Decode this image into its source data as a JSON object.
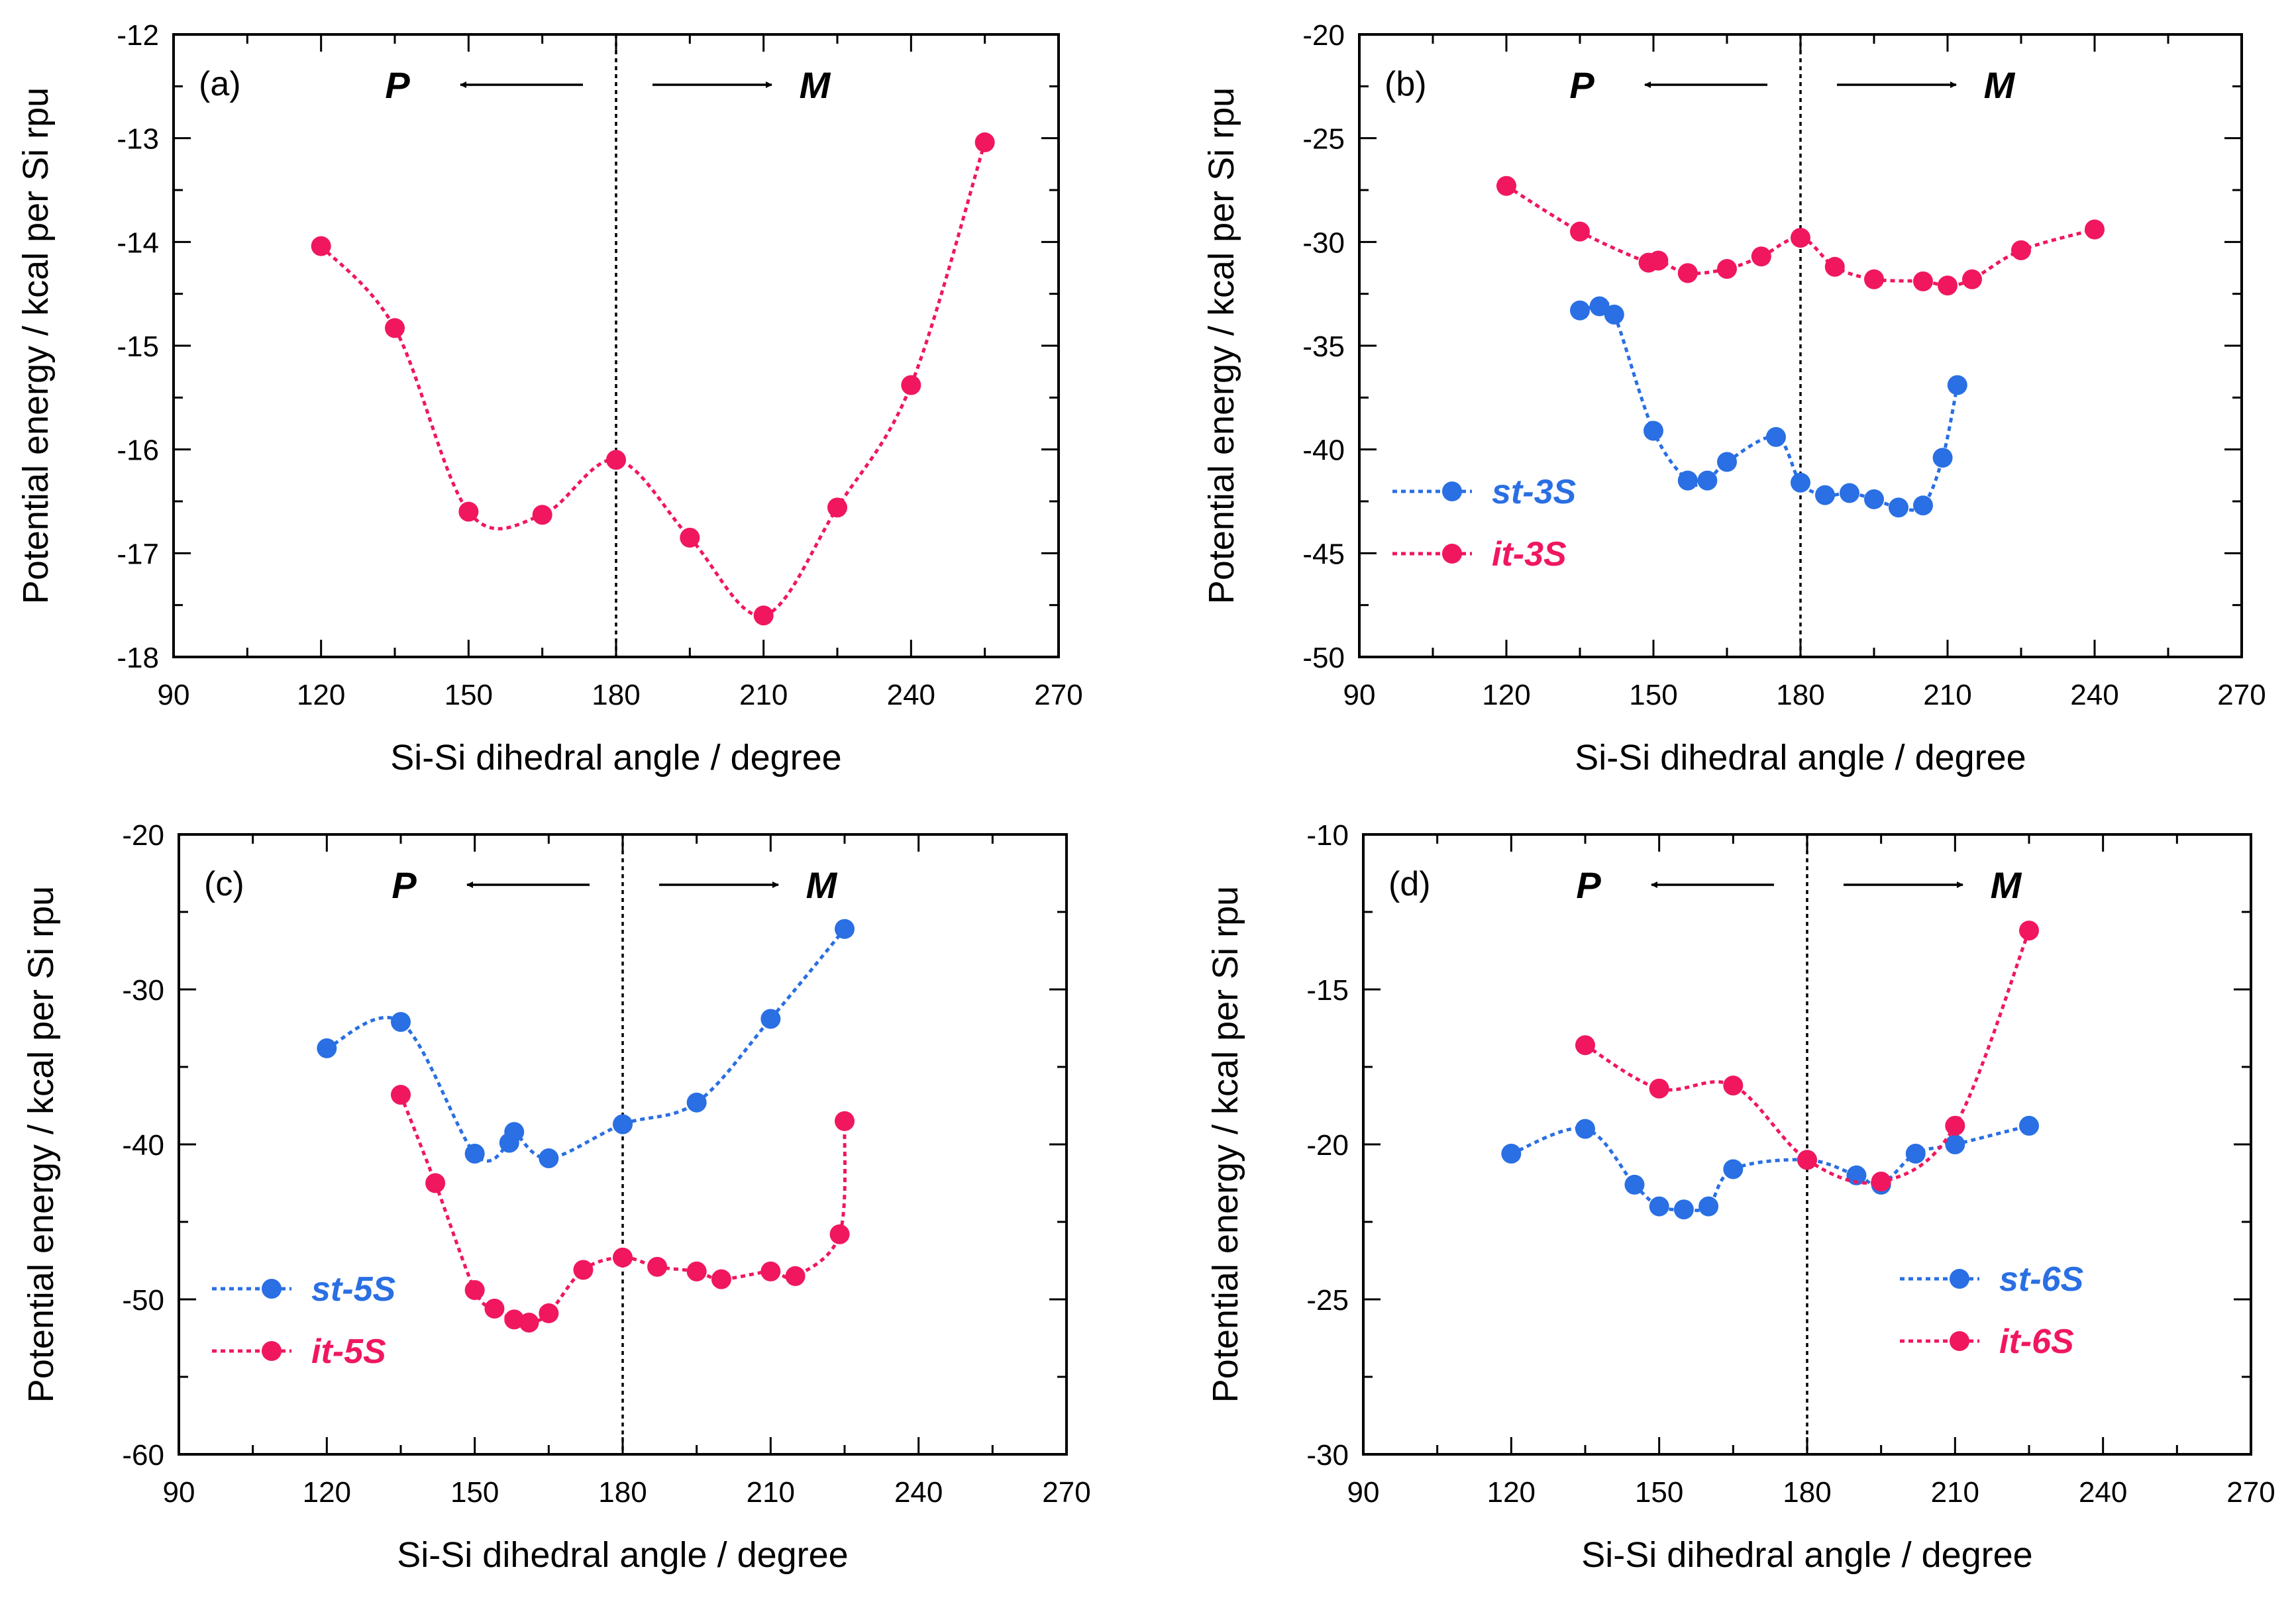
{
  "colors": {
    "pink": "#f0175f",
    "blue": "#2a6fe3",
    "axis": "#000000"
  },
  "chart_data": [
    {
      "type": "line",
      "panel_label": "(a)",
      "xlabel": "Si-Si dihedral angle / degree",
      "ylabel": "Potential energy / kcal per Si rpu",
      "xlim": [
        90,
        270
      ],
      "xticks": [
        90,
        120,
        150,
        180,
        210,
        240,
        270
      ],
      "ylim": [
        -18,
        -12
      ],
      "yticks": [
        -18,
        -17,
        -16,
        -15,
        -14,
        -13,
        -12
      ],
      "divider_x": 180,
      "left_label": "P",
      "right_label": "M",
      "legend": {
        "position": "none",
        "entries": []
      },
      "series": [
        {
          "name": "",
          "color": "#f0175f",
          "x": [
            120,
            135,
            150,
            165,
            180,
            195,
            210,
            225,
            240,
            255
          ],
          "y": [
            -14.04,
            -14.83,
            -16.6,
            -16.63,
            -16.1,
            -16.85,
            -17.6,
            -16.56,
            -15.38,
            -13.04
          ]
        }
      ]
    },
    {
      "type": "line",
      "panel_label": "(b)",
      "xlabel": "Si-Si dihedral angle / degree",
      "ylabel": "Potential energy / kcal per Si rpu",
      "xlim": [
        90,
        270
      ],
      "xticks": [
        90,
        120,
        150,
        180,
        210,
        240,
        270
      ],
      "ylim": [
        -50,
        -20
      ],
      "yticks": [
        -50,
        -45,
        -40,
        -35,
        -30,
        -25,
        -20
      ],
      "divider_x": 180,
      "left_label": "P",
      "right_label": "M",
      "legend": {
        "position": "bottom-left",
        "entries": [
          {
            "prefix": "st",
            "suffix": "-3S",
            "color": "#2a6fe3"
          },
          {
            "prefix": "it",
            "suffix": "-3S",
            "color": "#f0175f"
          }
        ]
      },
      "series": [
        {
          "name": "st-3S",
          "color": "#2a6fe3",
          "x": [
            135,
            139,
            142,
            150,
            157,
            161,
            165,
            175,
            180,
            185,
            190,
            195,
            200,
            205,
            209,
            212
          ],
          "y": [
            -33.3,
            -33.1,
            -33.5,
            -39.1,
            -41.5,
            -41.5,
            -40.6,
            -39.4,
            -41.6,
            -42.2,
            -42.1,
            -42.4,
            -42.8,
            -42.7,
            -40.4,
            -36.9
          ]
        },
        {
          "name": "it-3S",
          "color": "#f0175f",
          "x": [
            120,
            135,
            149,
            151,
            157,
            165,
            172,
            180,
            187,
            195,
            205,
            210,
            215,
            225,
            240
          ],
          "y": [
            -27.3,
            -29.5,
            -31.0,
            -30.9,
            -31.5,
            -31.3,
            -30.7,
            -29.8,
            -31.2,
            -31.8,
            -31.9,
            -32.1,
            -31.8,
            -30.4,
            -29.4
          ]
        }
      ]
    },
    {
      "type": "line",
      "panel_label": "(c)",
      "xlabel": "Si-Si dihedral angle / degree",
      "ylabel": "Potential energy / kcal per Si rpu",
      "xlim": [
        90,
        270
      ],
      "xticks": [
        90,
        120,
        150,
        180,
        210,
        240,
        270
      ],
      "ylim": [
        -60,
        -20
      ],
      "yticks": [
        -60,
        -50,
        -40,
        -30,
        -20
      ],
      "divider_x": 180,
      "left_label": "P",
      "right_label": "M",
      "legend": {
        "position": "bottom-left",
        "entries": [
          {
            "prefix": "st",
            "suffix": "-5S",
            "color": "#2a6fe3"
          },
          {
            "prefix": "it",
            "suffix": "-5S",
            "color": "#f0175f"
          }
        ]
      },
      "series": [
        {
          "name": "st-5S",
          "color": "#2a6fe3",
          "x": [
            120,
            135,
            150,
            157,
            158,
            165,
            180,
            195,
            210,
            225
          ],
          "y": [
            -33.8,
            -32.1,
            -40.6,
            -39.9,
            -39.2,
            -40.9,
            -38.7,
            -37.3,
            -31.9,
            -26.1
          ]
        },
        {
          "name": "it-5S",
          "color": "#f0175f",
          "x": [
            135,
            142,
            150,
            154,
            158,
            161,
            165,
            172,
            180,
            187,
            195,
            200,
            210,
            215,
            224,
            225
          ],
          "y": [
            -36.8,
            -42.5,
            -49.4,
            -50.6,
            -51.3,
            -51.5,
            -50.9,
            -48.1,
            -47.3,
            -47.9,
            -48.2,
            -48.7,
            -48.2,
            -48.5,
            -45.8,
            -38.5
          ]
        }
      ]
    },
    {
      "type": "line",
      "panel_label": "(d)",
      "xlabel": "Si-Si dihedral angle / degree",
      "ylabel": "Potential energy / kcal per Si rpu",
      "xlim": [
        90,
        270
      ],
      "xticks": [
        90,
        120,
        150,
        180,
        210,
        240,
        270
      ],
      "ylim": [
        -30,
        -10
      ],
      "yticks": [
        -30,
        -25,
        -20,
        -15,
        -10
      ],
      "divider_x": 180,
      "left_label": "P",
      "right_label": "M",
      "legend": {
        "position": "bottom-right",
        "entries": [
          {
            "prefix": "st",
            "suffix": "-6S",
            "color": "#2a6fe3"
          },
          {
            "prefix": "it",
            "suffix": "-6S",
            "color": "#f0175f"
          }
        ]
      },
      "series": [
        {
          "name": "st-6S",
          "color": "#2a6fe3",
          "x": [
            120,
            135,
            145,
            150,
            155,
            160,
            165,
            180,
            190,
            195,
            202,
            210,
            225
          ],
          "y": [
            -20.3,
            -19.5,
            -21.3,
            -22.0,
            -22.1,
            -22.0,
            -20.8,
            -20.5,
            -21.0,
            -21.3,
            -20.3,
            -20.0,
            -19.4
          ]
        },
        {
          "name": "it-6S",
          "color": "#f0175f",
          "x": [
            135,
            150,
            165,
            180,
            195,
            210,
            225
          ],
          "y": [
            -16.8,
            -18.2,
            -18.1,
            -20.5,
            -21.2,
            -19.4,
            -13.1
          ]
        }
      ]
    }
  ]
}
